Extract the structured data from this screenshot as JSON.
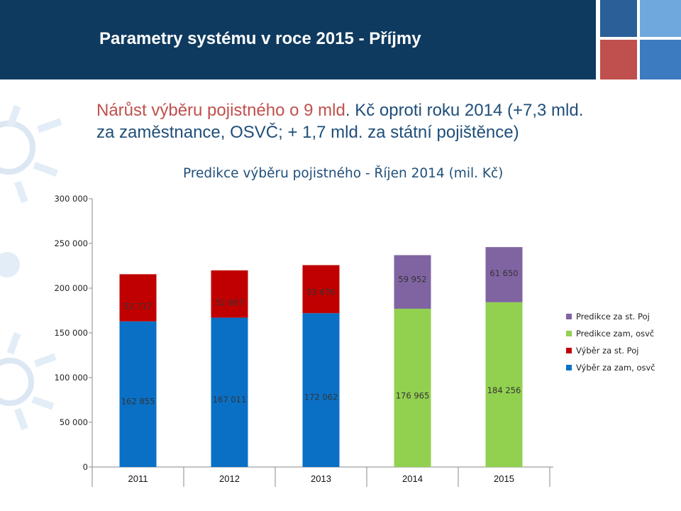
{
  "slide": {
    "title": "Parametry systému v roce 2015 - Příjmy",
    "colors": {
      "header": "#0f3a5f",
      "tiles": [
        "#2a5f98",
        "#6fa8dc",
        "#c0504d",
        "#3c7bbf"
      ]
    }
  },
  "headline": {
    "part1": "Nárůst výběru pojistného o 9 mld",
    "part2": ". Kč oproti roku 2014 (+7,3 mld. za zaměstnance, OSVČ; + 1,7 mld. za státní pojištěnce)"
  },
  "chart_data": {
    "type": "bar",
    "stacked": true,
    "title": "Predikce výběru pojistného - Říjen 2014 (mil. Kč)",
    "categories": [
      "2011",
      "2012",
      "2013",
      "2014",
      "2015"
    ],
    "ylim": [
      0,
      300000
    ],
    "yticks": [
      0,
      50000,
      100000,
      150000,
      200000,
      250000,
      300000
    ],
    "ytick_labels": [
      "0",
      "50 000",
      "100 000",
      "150 000",
      "200 000",
      "250 000",
      "300 000"
    ],
    "grid": false,
    "legend_position": "right",
    "series": [
      {
        "name": "Výběr za zam, osvč",
        "color": "#0a70c6",
        "values": [
          162855,
          167011,
          172062,
          null,
          null
        ]
      },
      {
        "name": "Výběr za st. Poj",
        "color": "#c00000",
        "values": [
          52717,
          52867,
          53676,
          null,
          null
        ]
      },
      {
        "name": "Predikce zam, osvč",
        "color": "#92d050",
        "values": [
          null,
          null,
          null,
          176965,
          184256
        ]
      },
      {
        "name": "Predikce za st. Poj",
        "color": "#8064a2",
        "values": [
          null,
          null,
          null,
          59952,
          61650
        ]
      }
    ],
    "bottom_labels": [
      "162 855",
      "167 011",
      "172 062",
      "176 965",
      "184 256"
    ],
    "top_labels": [
      "52 717",
      "52 867",
      "53 676",
      "59 952",
      "61 650"
    ],
    "legend_order": [
      "Predikce za st. Poj",
      "Predikce zam, osvč",
      "Výběr za st. Poj",
      "Výběr za zam, osvč"
    ]
  }
}
